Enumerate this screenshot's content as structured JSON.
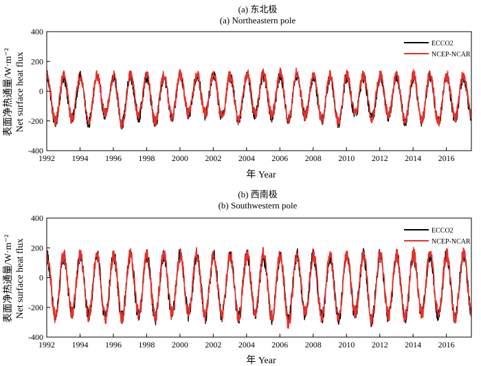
{
  "chart_data": [
    {
      "type": "line",
      "title_cn": "(a) 东北极",
      "title_en": "(a) Northeastern pole",
      "ylabel_cn": "表面净热通量/W·m⁻²",
      "ylabel_en": "Net surface heat flux",
      "xlabel": "年 Year",
      "xlim": [
        1992,
        2017.5
      ],
      "ylim": [
        -400,
        400
      ],
      "xticks": [
        "1992",
        "1994",
        "1996",
        "1998",
        "2000",
        "2002",
        "2004",
        "2006",
        "2008",
        "2010",
        "2012",
        "2014",
        "2016"
      ],
      "yticks": [
        "400",
        "200",
        "0",
        "-200",
        "-400"
      ],
      "legend_position": "top-right",
      "series": [
        {
          "name": "ECCO2",
          "color": "#000000",
          "annual_mean": -15,
          "amplitude": 112,
          "weekly_noise": 40,
          "peaks": [
            130,
            135,
            140,
            128,
            145,
            138,
            130,
            142,
            135,
            150,
            145,
            132,
            148,
            140,
            155,
            138,
            130,
            142,
            135,
            128,
            140,
            136,
            150,
            145,
            138,
            132
          ],
          "troughs": [
            -255,
            -230,
            -260,
            -200,
            -265,
            -210,
            -255,
            -220,
            -190,
            -195,
            -215,
            -230,
            -200,
            -210,
            -240,
            -205,
            -235,
            -260,
            -195,
            -225,
            -205,
            -250,
            -240,
            -255,
            -225,
            -205
          ]
        },
        {
          "name": "NCEP-NCAR",
          "color": "#e8302a",
          "annual_mean": -15,
          "amplitude": 108,
          "weekly_noise": 38,
          "peaks": [
            145,
            150,
            150,
            140,
            155,
            148,
            140,
            150,
            145,
            160,
            150,
            140,
            165,
            150,
            175,
            150,
            145,
            155,
            148,
            140,
            150,
            148,
            160,
            150,
            150,
            145
          ],
          "troughs": [
            -245,
            -225,
            -250,
            -190,
            -275,
            -205,
            -250,
            -215,
            -185,
            -190,
            -210,
            -225,
            -195,
            -200,
            -235,
            -200,
            -230,
            -255,
            -190,
            -215,
            -200,
            -245,
            -235,
            -250,
            -220,
            -200
          ]
        }
      ]
    },
    {
      "type": "line",
      "title_cn": "(b) 西南极",
      "title_en": "(b) Southwestern pole",
      "ylabel_cn": "表面净热通量/W·m⁻²",
      "ylabel_en": "Net surface heat flux",
      "xlabel": "年 Year",
      "xlim": [
        1992,
        2017.5
      ],
      "ylim": [
        -400,
        400
      ],
      "xticks": [
        "1992",
        "1994",
        "1996",
        "1998",
        "2000",
        "2002",
        "2004",
        "2006",
        "2008",
        "2010",
        "2012",
        "2014",
        "2016"
      ],
      "yticks": [
        "400",
        "200",
        "0",
        "-200",
        "-400"
      ],
      "legend_position": "top-right",
      "series": [
        {
          "name": "ECCO2",
          "color": "#000000",
          "annual_mean": -20,
          "amplitude": 165,
          "weekly_noise": 50,
          "peaks": [
            200,
            195,
            205,
            200,
            210,
            205,
            200,
            210,
            205,
            200,
            210,
            205,
            215,
            200,
            205,
            210,
            200,
            205,
            200,
            210,
            205,
            200,
            210,
            215,
            205,
            210
          ],
          "troughs": [
            -330,
            -300,
            -320,
            -330,
            -335,
            -310,
            -330,
            -310,
            -300,
            -320,
            -310,
            -330,
            -300,
            -330,
            -340,
            -310,
            -330,
            -345,
            -300,
            -350,
            -320,
            -330,
            -310,
            -320,
            -330,
            -300
          ]
        },
        {
          "name": "NCEP-NCAR",
          "color": "#e8302a",
          "annual_mean": -20,
          "amplitude": 160,
          "weekly_noise": 48,
          "peaks": [
            210,
            205,
            215,
            205,
            210,
            210,
            205,
            215,
            210,
            205,
            215,
            210,
            220,
            205,
            210,
            215,
            205,
            210,
            205,
            215,
            210,
            205,
            215,
            220,
            210,
            215
          ],
          "troughs": [
            -320,
            -290,
            -310,
            -325,
            -330,
            -300,
            -320,
            -300,
            -290,
            -315,
            -300,
            -320,
            -290,
            -320,
            -370,
            -300,
            -320,
            -335,
            -290,
            -340,
            -310,
            -320,
            -300,
            -310,
            -320,
            -290
          ]
        }
      ]
    }
  ]
}
